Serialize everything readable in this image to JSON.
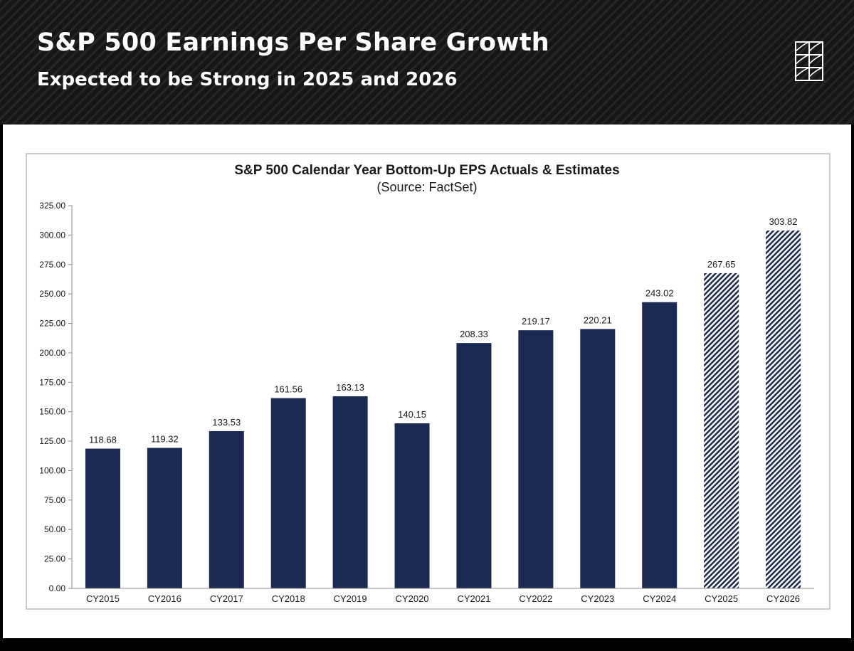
{
  "header": {
    "title": "S&P 500 Earnings Per Share Growth",
    "subtitle": "Expected to be Strong in 2025 and 2026",
    "logo_icon": "geometric-square-logo",
    "background_color": "#161616"
  },
  "colors": {
    "bar_actual": "#1b2a52",
    "bar_estimate_stripe": "#1b2a52",
    "background": "#ffffff"
  },
  "chart_data": {
    "type": "bar",
    "title": "S&P 500 Calendar Year Bottom-Up EPS Actuals & Estimates",
    "subtitle": "(Source: FactSet)",
    "xlabel": "",
    "ylabel": "",
    "ylim": [
      0,
      325
    ],
    "yticks": [
      "0.00",
      "25.00",
      "50.00",
      "75.00",
      "100.00",
      "125.00",
      "150.00",
      "175.00",
      "200.00",
      "225.00",
      "250.00",
      "275.00",
      "300.00",
      "325.00"
    ],
    "grid": false,
    "legend": "none",
    "categories": [
      "CY2015",
      "CY2016",
      "CY2017",
      "CY2018",
      "CY2019",
      "CY2020",
      "CY2021",
      "CY2022",
      "CY2023",
      "CY2024",
      "CY2025",
      "CY2026"
    ],
    "values": [
      118.68,
      119.32,
      133.53,
      161.56,
      163.13,
      140.15,
      208.33,
      219.17,
      220.21,
      243.02,
      267.65,
      303.82
    ],
    "labels": [
      "118.68",
      "119.32",
      "133.53",
      "161.56",
      "163.13",
      "140.15",
      "208.33",
      "219.17",
      "220.21",
      "243.02",
      "267.65",
      "303.82"
    ],
    "bar_style": [
      "solid",
      "solid",
      "solid",
      "solid",
      "solid",
      "solid",
      "solid",
      "solid",
      "solid",
      "solid",
      "hatched",
      "hatched"
    ]
  }
}
